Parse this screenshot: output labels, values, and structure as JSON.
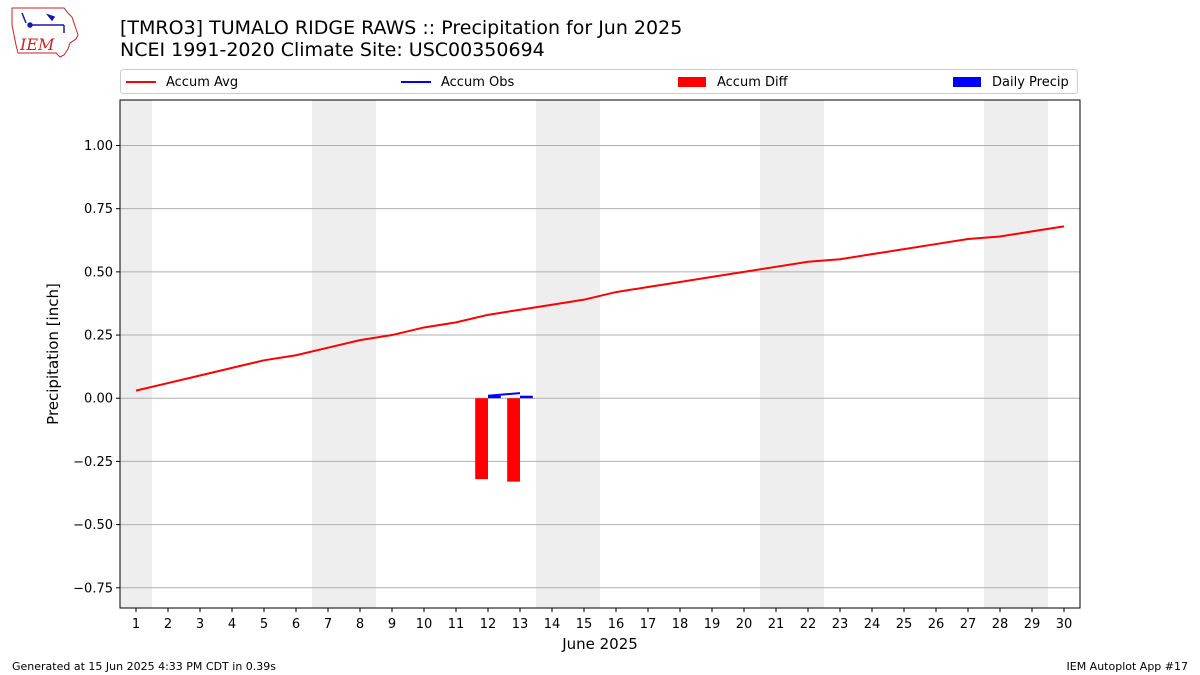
{
  "header": {
    "title_line1": "[TMRO3] TUMALO RIDGE RAWS :: Precipitation for Jun 2025",
    "title_line2": "NCEI 1991-2020 Climate Site: USC00350694",
    "logo_text": "IEM"
  },
  "footer": {
    "left": "Generated at 15 Jun 2025 4:33 PM CDT in 0.39s",
    "right": "IEM Autoplot App #17"
  },
  "legend": [
    {
      "label": "Accum Avg",
      "kind": "line",
      "color": "#ff0000"
    },
    {
      "label": "Accum Obs",
      "kind": "line",
      "color": "#0000ff"
    },
    {
      "label": "Accum Diff",
      "kind": "box",
      "color": "#ff0000"
    },
    {
      "label": "Daily Precip",
      "kind": "box",
      "color": "#0000ff"
    }
  ],
  "chart_data": {
    "type": "line",
    "xlabel": "June 2025",
    "ylabel": "Precipitation [inch]",
    "xlim": [
      0.5,
      30.5
    ],
    "ylim": [
      -0.83,
      1.18
    ],
    "x_ticks": [
      1,
      2,
      3,
      4,
      5,
      6,
      7,
      8,
      9,
      10,
      11,
      12,
      13,
      14,
      15,
      16,
      17,
      18,
      19,
      20,
      21,
      22,
      23,
      24,
      25,
      26,
      27,
      28,
      29,
      30
    ],
    "y_ticks": [
      -0.75,
      -0.5,
      -0.25,
      0.0,
      0.25,
      0.5,
      0.75,
      1.0
    ],
    "y_tick_labels": [
      "−0.75",
      "−0.50",
      "−0.25",
      "0.00",
      "0.25",
      "0.50",
      "0.75",
      "1.00"
    ],
    "grid": "horizontal",
    "weekend_shading": [
      [
        0.5,
        1.5
      ],
      [
        6.5,
        8.5
      ],
      [
        13.5,
        15.5
      ],
      [
        20.5,
        22.5
      ],
      [
        27.5,
        29.5
      ]
    ],
    "series": [
      {
        "name": "Accum Avg",
        "type": "line",
        "color": "#ff0000",
        "x": [
          1,
          2,
          3,
          4,
          5,
          6,
          7,
          8,
          9,
          10,
          11,
          12,
          13,
          14,
          15,
          16,
          17,
          18,
          19,
          20,
          21,
          22,
          23,
          24,
          25,
          26,
          27,
          28,
          29,
          30
        ],
        "values": [
          0.03,
          0.06,
          0.09,
          0.12,
          0.15,
          0.17,
          0.2,
          0.23,
          0.25,
          0.28,
          0.3,
          0.33,
          0.35,
          0.37,
          0.39,
          0.42,
          0.44,
          0.46,
          0.48,
          0.5,
          0.52,
          0.54,
          0.55,
          0.57,
          0.59,
          0.61,
          0.63,
          0.64,
          0.66,
          0.68
        ]
      },
      {
        "name": "Accum Obs",
        "type": "line",
        "color": "#0000ff",
        "x": [
          12,
          13
        ],
        "values": [
          0.01,
          0.02
        ]
      },
      {
        "name": "Accum Diff",
        "type": "bar",
        "color": "#ff0000",
        "x": [
          12,
          13
        ],
        "values": [
          -0.32,
          -0.33
        ]
      },
      {
        "name": "Daily Precip",
        "type": "bar",
        "color": "#0000ff",
        "x": [
          12,
          13
        ],
        "values": [
          0.01,
          0.01
        ]
      }
    ]
  }
}
